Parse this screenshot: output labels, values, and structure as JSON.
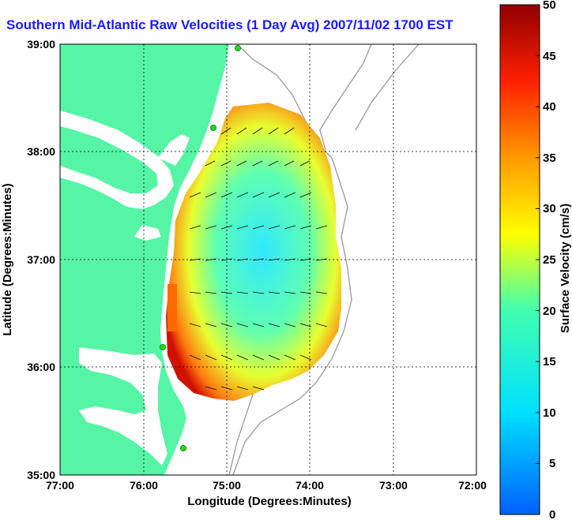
{
  "title": "Southern Mid-Atlantic Raw Velocities (1 Day Avg) 2007/11/02 1700 EST",
  "axes": {
    "xlabel": "Longitude (Degrees:Minutes)",
    "ylabel": "Latitude (Degrees:Minutes)",
    "xticks": [
      "77:00",
      "76:00",
      "75:00",
      "74:00",
      "73:00",
      "72:00"
    ],
    "yticks": [
      "39:00",
      "38:00",
      "37:00",
      "36:00",
      "35:00"
    ]
  },
  "colorbar": {
    "label": "Surface Velocity (cm/s)",
    "ticks": [
      "50",
      "45",
      "40",
      "35",
      "30",
      "25",
      "20",
      "15",
      "10",
      "5",
      "0"
    ],
    "range": [
      0,
      50
    ]
  },
  "colors": {
    "land": "#55f5a5",
    "water": "#ffffff",
    "title": "#1a1aff",
    "station": "#22dd22",
    "bathymetry": "#999999"
  }
}
